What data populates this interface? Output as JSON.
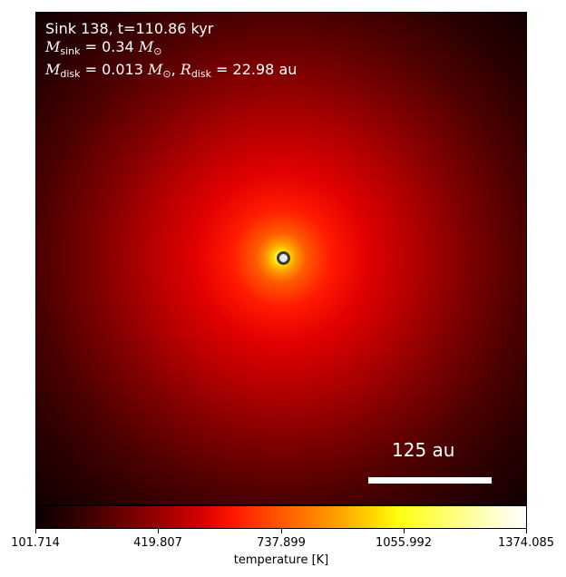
{
  "info": {
    "title": "Sink 138, t=110.86 kyr",
    "msink_symbol": "M",
    "msink_sub": "sink",
    "msink_value": " = 0.34 ",
    "msink_unit": "M",
    "msink_unit_sub": "⊙",
    "mdisk_symbol": "M",
    "mdisk_sub": "disk",
    "mdisk_value": " = 0.013 ",
    "mdisk_unit": "M",
    "mdisk_unit_sub": "⊙",
    "rdisk_sep": ", ",
    "rdisk_symbol": "R",
    "rdisk_sub": "disk",
    "rdisk_value": " = 22.98 au"
  },
  "scale_bar": {
    "label": "125 au"
  },
  "colorbar": {
    "label": "temperature [K]",
    "ticks": [
      "101.714",
      "419.807",
      "737.899",
      "1055.992",
      "1374.085"
    ],
    "colormap": "hot"
  }
}
